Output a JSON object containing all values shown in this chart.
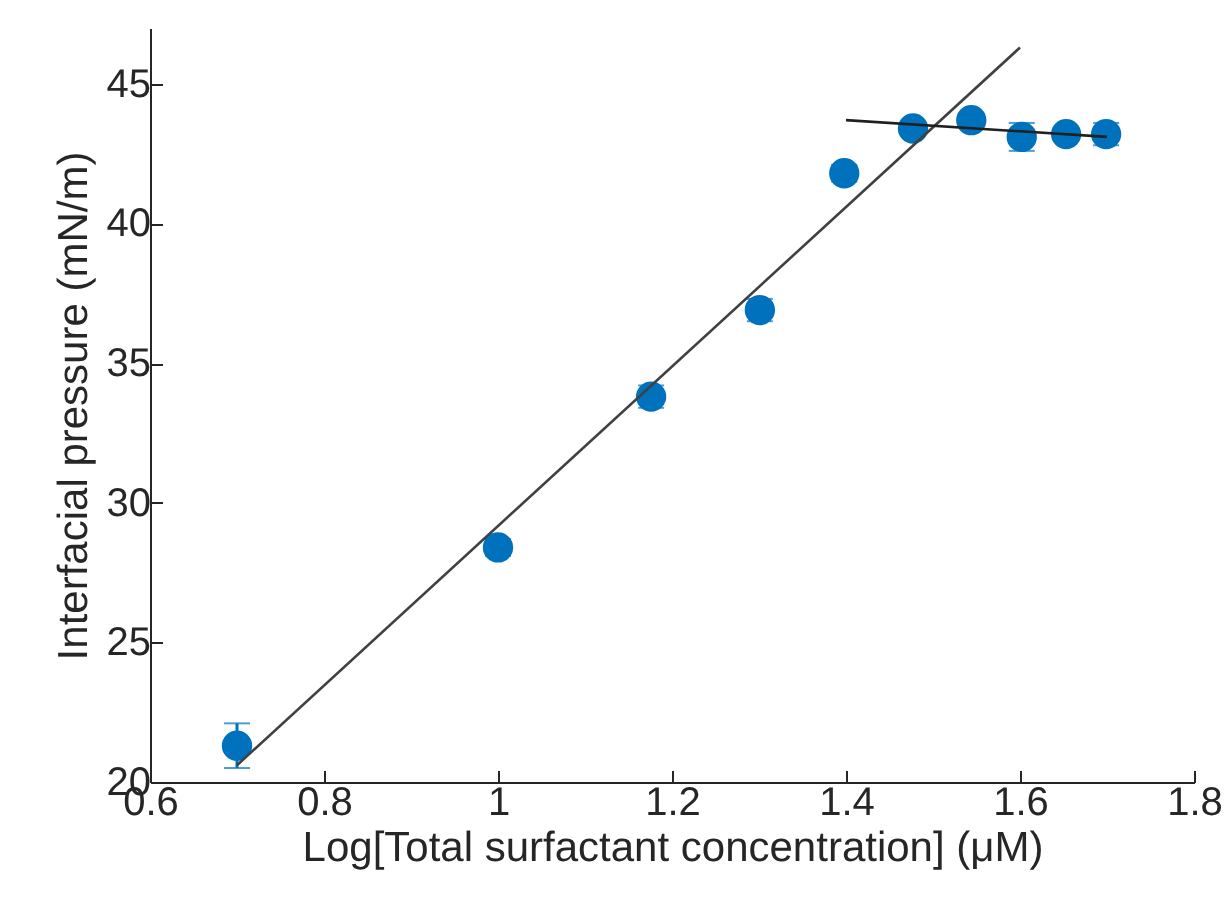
{
  "chart_data": {
    "type": "scatter",
    "xlabel": "Log[Total surfactant concentration] (μM)",
    "ylabel": "Interfacial pressure (mN/m)",
    "xlim": [
      0.6,
      1.8
    ],
    "xticks": [
      0.6,
      0.8,
      1,
      1.2,
      1.4,
      1.6,
      1.8
    ],
    "ylim": [
      20,
      47
    ],
    "yticks": [
      20,
      25,
      30,
      35,
      40,
      45
    ],
    "grid": false,
    "marker": "circle",
    "series": [
      {
        "color": "#0072bd",
        "x": [
          0.7,
          1.0,
          1.176,
          1.301,
          1.398,
          1.477,
          1.544,
          1.602,
          1.653,
          1.699
        ],
        "values": [
          21.3,
          28.4,
          33.8,
          36.9,
          41.8,
          43.4,
          43.7,
          43.1,
          43.2,
          43.2
        ],
        "errors": [
          0.8,
          0.3,
          0.4,
          0.4,
          0.3,
          0.2,
          0.2,
          0.5,
          0.2,
          0.4
        ]
      },
      {
        "type": "line",
        "color": "#404040",
        "marker": "none",
        "x": [
          0.7,
          1.6
        ],
        "values": [
          20.6,
          46.3
        ]
      },
      {
        "type": "line",
        "color": "#202020",
        "marker": "none",
        "x": [
          1.4,
          1.7
        ],
        "values": [
          43.7,
          43.1
        ]
      }
    ]
  }
}
